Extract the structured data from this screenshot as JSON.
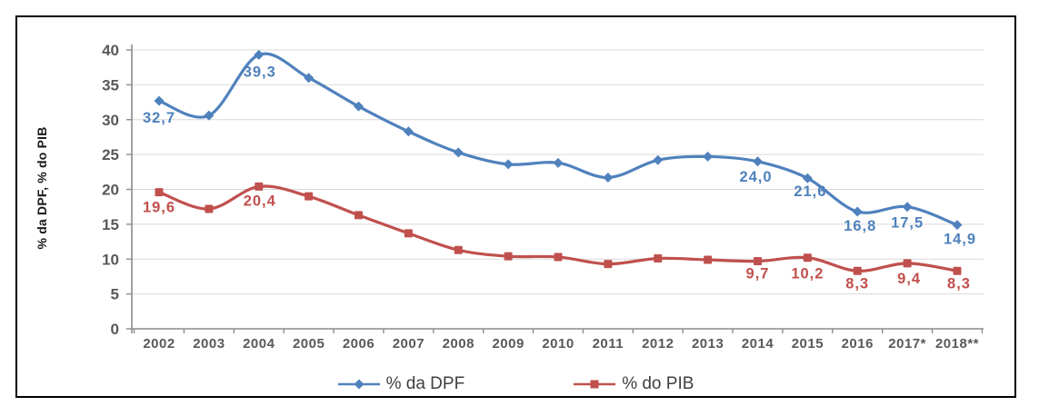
{
  "figure": {
    "background": "#ffffff",
    "frame_border_color": "#000000"
  },
  "chart_data": {
    "type": "line",
    "title": "",
    "xlabel": "",
    "ylabel": "% da DPF, % do PIB",
    "ylim": [
      0,
      40
    ],
    "yticks": [
      0,
      5,
      10,
      15,
      20,
      25,
      30,
      35,
      40
    ],
    "grid": "horizontal",
    "grid_color": "#d9d9d9",
    "axis_color": "#8c8c8c",
    "tick_label_color": "#595959",
    "legend_position": "bottom-center",
    "categories": [
      "2002",
      "2003",
      "2004",
      "2005",
      "2006",
      "2007",
      "2008",
      "2009",
      "2010",
      "2011",
      "2012",
      "2013",
      "2014",
      "2015",
      "2016",
      "2017*",
      "2018**"
    ],
    "series": [
      {
        "name": "% da DPF",
        "color": "#4f81bd",
        "marker": "diamond",
        "line_style": "smooth",
        "values": [
          32.7,
          30.6,
          39.3,
          36.0,
          31.9,
          28.3,
          25.3,
          23.6,
          23.8,
          21.7,
          24.2,
          24.7,
          24.0,
          21.6,
          16.8,
          17.5,
          14.9
        ],
        "point_labels": [
          {
            "index": 0,
            "text": "32,7",
            "dx": 0,
            "dy": 24
          },
          {
            "index": 2,
            "text": "39,3",
            "dx": 1,
            "dy": 24
          },
          {
            "index": 12,
            "text": "24,0",
            "dx": -2,
            "dy": 22
          },
          {
            "index": 13,
            "text": "21,6",
            "dx": 3,
            "dy": 20
          },
          {
            "index": 14,
            "text": "16,8",
            "dx": 3,
            "dy": 21
          },
          {
            "index": 15,
            "text": "17,5",
            "dx": 0,
            "dy": 23
          },
          {
            "index": 16,
            "text": "14,9",
            "dx": 3,
            "dy": 21
          }
        ]
      },
      {
        "name": "% do PIB",
        "color": "#c0504d",
        "marker": "square",
        "line_style": "smooth",
        "values": [
          19.6,
          17.2,
          20.4,
          19.0,
          16.3,
          13.7,
          11.3,
          10.4,
          10.3,
          9.3,
          10.1,
          9.9,
          9.7,
          10.2,
          8.3,
          9.4,
          8.3
        ],
        "point_labels": [
          {
            "index": 0,
            "text": "19,6",
            "dx": 0,
            "dy": 22
          },
          {
            "index": 2,
            "text": "20,4",
            "dx": 1,
            "dy": 21
          },
          {
            "index": 12,
            "text": "9,7",
            "dx": 0,
            "dy": 19
          },
          {
            "index": 13,
            "text": "10,2",
            "dx": 0,
            "dy": 23
          },
          {
            "index": 14,
            "text": "8,3",
            "dx": 0,
            "dy": 19
          },
          {
            "index": 15,
            "text": "9,4",
            "dx": 2,
            "dy": 22
          },
          {
            "index": 16,
            "text": "8,3",
            "dx": 2,
            "dy": 19
          }
        ]
      }
    ]
  }
}
